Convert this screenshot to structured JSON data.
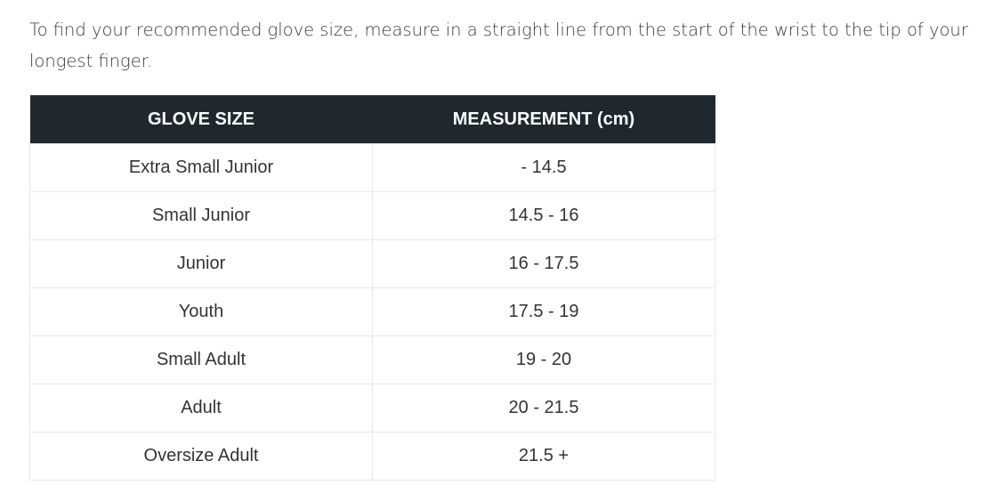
{
  "intro": "To find your recommended glove size, measure in a straight line from the start of the wrist to the tip of your longest finger.",
  "table": {
    "headers": [
      "GLOVE SIZE",
      "MEASUREMENT (cm)"
    ],
    "rows": [
      [
        "Extra Small Junior",
        "- 14.5"
      ],
      [
        "Small Junior",
        "14.5 - 16"
      ],
      [
        "Junior",
        "16 - 17.5"
      ],
      [
        "Youth",
        "17.5 - 19"
      ],
      [
        "Small Adult",
        "19 - 20"
      ],
      [
        "Adult",
        "20 - 21.5"
      ],
      [
        "Oversize Adult",
        "21.5 +"
      ]
    ]
  }
}
